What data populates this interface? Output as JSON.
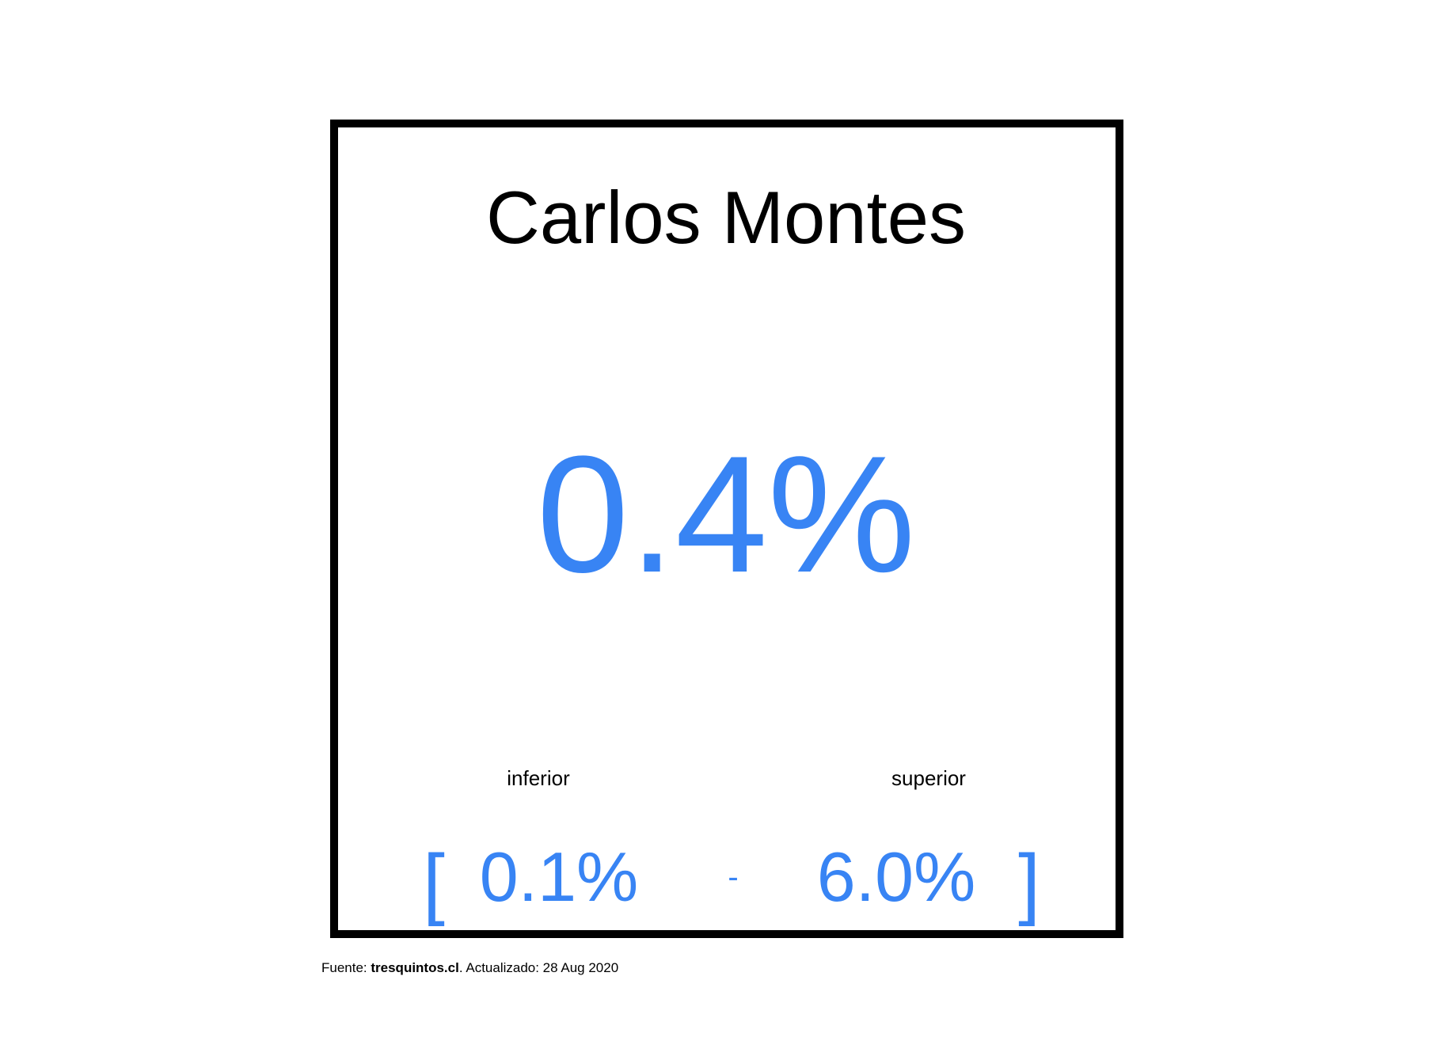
{
  "card": {
    "name": "Carlos Montes",
    "value": "0.4%",
    "range": {
      "lower_label": "inferior",
      "upper_label": "superior",
      "open_bracket": "[",
      "lower_value": "0.1%",
      "separator": "-",
      "upper_value": "6.0%",
      "close_bracket": "]"
    }
  },
  "footer": {
    "source_prefix": "Fuente: ",
    "source_name": "tresquintos.cl",
    "updated_text": ". Actualizado: 28 Aug 2020"
  },
  "colors": {
    "accent": "#3884f4",
    "text": "#000000",
    "border": "#000000",
    "background": "#ffffff"
  }
}
